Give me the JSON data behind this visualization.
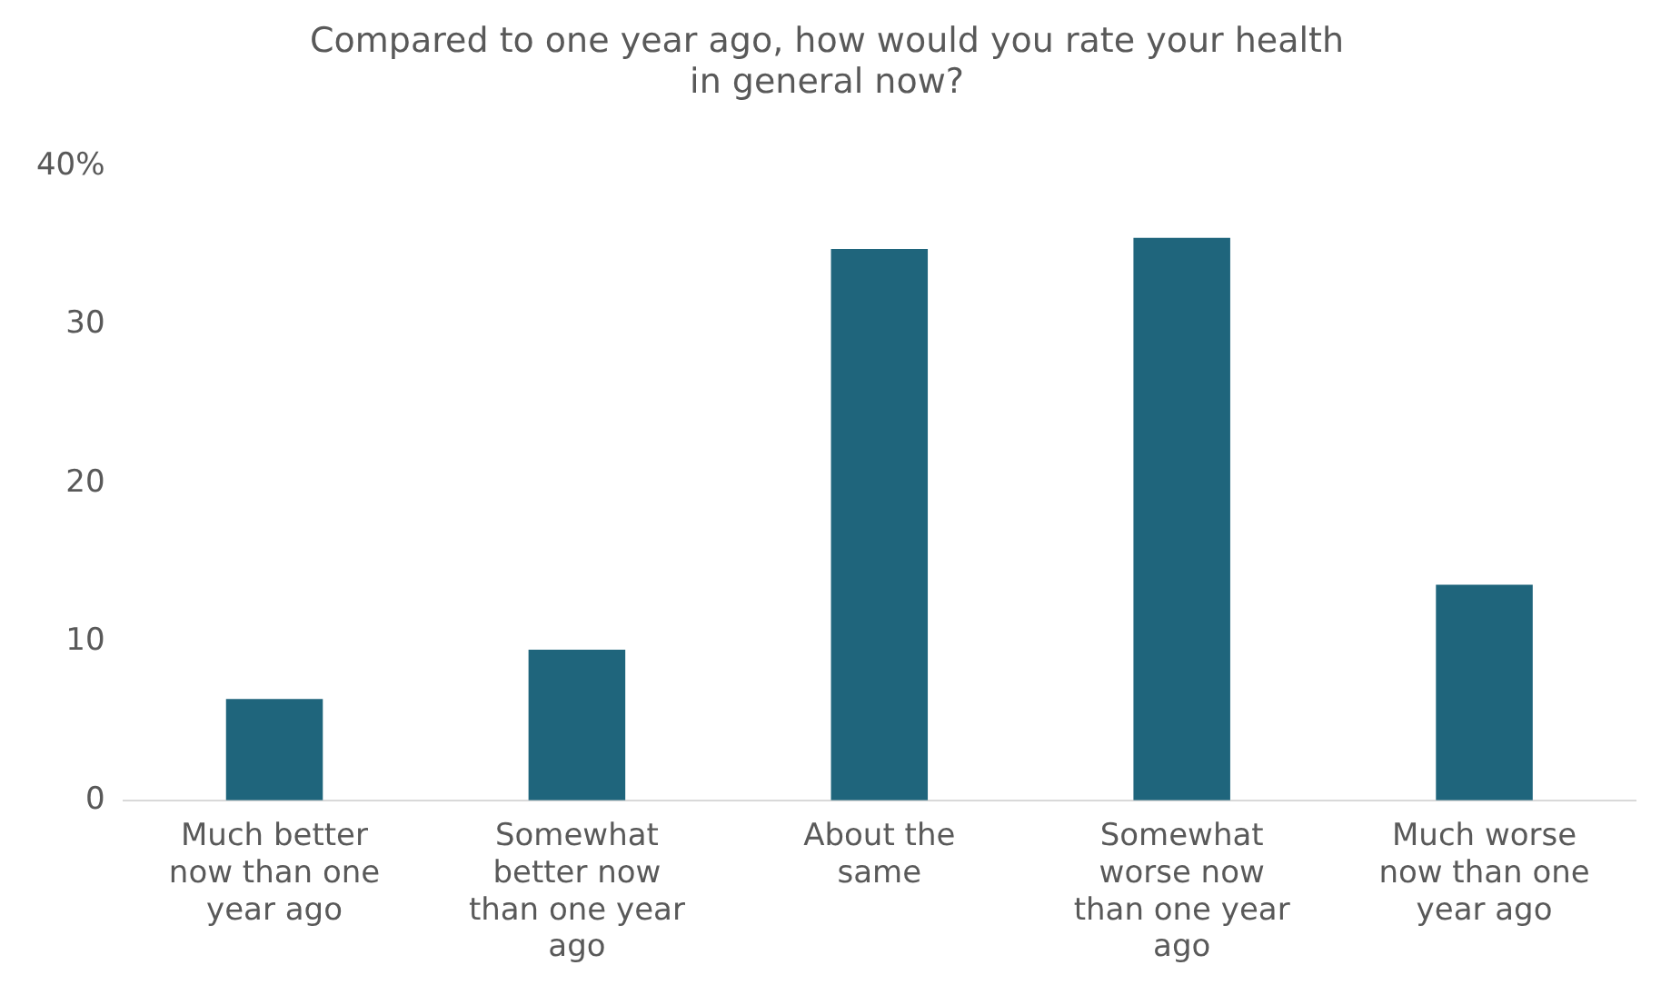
{
  "chart_data": {
    "type": "bar",
    "title": "Compared to one year ago, how would you rate your health in general now?",
    "categories": [
      "Much better now than one year ago",
      "Somewhat better now than one year ago",
      "About the same",
      "Somewhat worse now than one year ago",
      "Much worse now than one year ago"
    ],
    "values": [
      6.4,
      9.5,
      34.8,
      35.5,
      13.6
    ],
    "color": "#1f657c",
    "ylim": [
      0,
      40
    ],
    "yticks": [
      0,
      10,
      20,
      30,
      {
        "value": 40,
        "label": "40%"
      }
    ],
    "grid": false,
    "legend": false
  }
}
